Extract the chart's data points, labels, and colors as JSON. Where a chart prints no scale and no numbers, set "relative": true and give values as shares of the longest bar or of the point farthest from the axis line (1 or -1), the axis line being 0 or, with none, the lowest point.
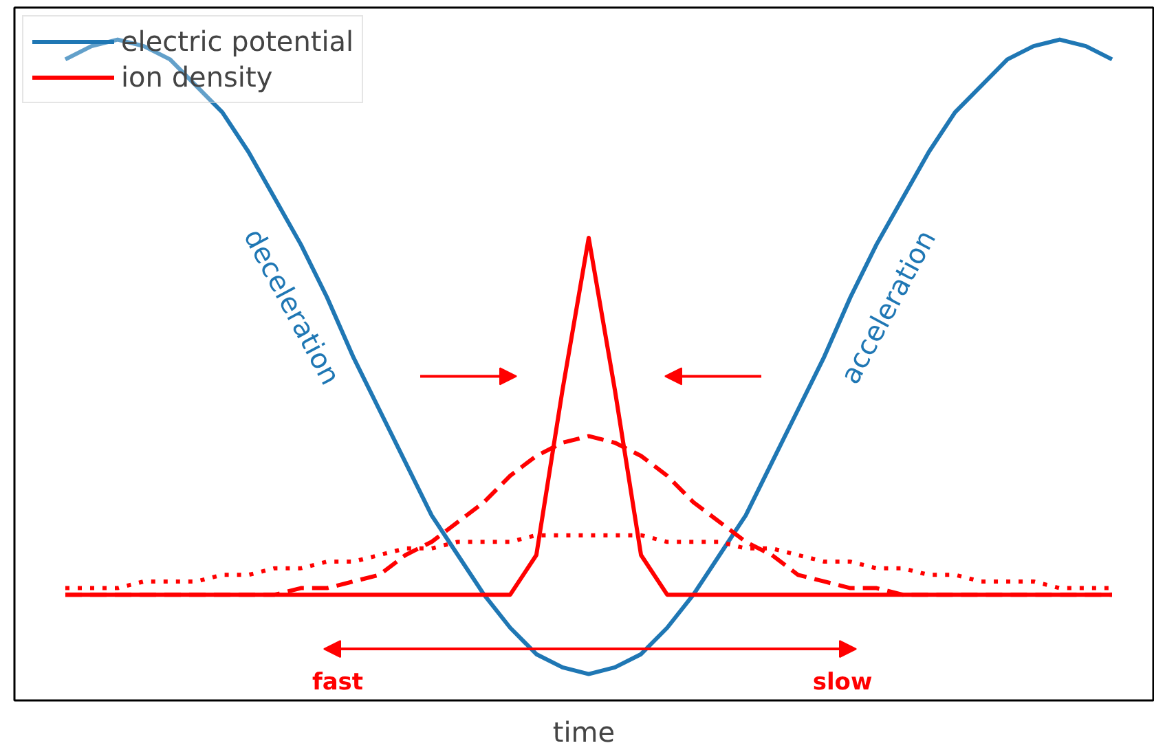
{
  "chart_data": {
    "type": "line",
    "relative": true,
    "xlabel": "time",
    "categories": [
      null,
      null,
      null,
      null,
      null,
      null,
      null,
      null,
      null,
      null,
      null,
      null,
      null,
      null,
      null,
      null,
      null,
      null,
      null,
      null,
      null,
      null,
      null,
      null,
      null,
      null,
      null,
      null,
      null,
      null,
      null,
      null,
      null,
      null,
      null,
      null,
      null,
      null,
      null,
      null,
      null
    ],
    "series": [
      {
        "name": "electric potential",
        "color": "#1f77b4",
        "line_style": "solid",
        "values": [
          0.97,
          0.99,
          1.0,
          0.99,
          0.97,
          0.93,
          0.89,
          0.83,
          0.76,
          0.69,
          0.61,
          0.52,
          0.44,
          0.36,
          0.28,
          0.22,
          0.16,
          0.11,
          0.07,
          0.05,
          0.04,
          0.05,
          0.07,
          0.11,
          0.16,
          0.22,
          0.28,
          0.36,
          0.44,
          0.52,
          0.61,
          0.69,
          0.76,
          0.83,
          0.89,
          0.93,
          0.97,
          0.99,
          1.0,
          0.99,
          0.97
        ]
      },
      {
        "name": "ion density",
        "color": "#ff0000",
        "line_style": "solid",
        "values": [
          0.16,
          0.16,
          0.16,
          0.16,
          0.16,
          0.16,
          0.16,
          0.16,
          0.16,
          0.16,
          0.16,
          0.16,
          0.16,
          0.16,
          0.16,
          0.16,
          0.16,
          0.16,
          0.22,
          0.47,
          0.7,
          0.47,
          0.22,
          0.16,
          0.16,
          0.16,
          0.16,
          0.16,
          0.16,
          0.16,
          0.16,
          0.16,
          0.16,
          0.16,
          0.16,
          0.16,
          0.16,
          0.16,
          0.16,
          0.16,
          0.16
        ]
      },
      {
        "color": "#ff0000",
        "line_style": "dashed",
        "values": [
          0.16,
          0.16,
          0.16,
          0.16,
          0.16,
          0.16,
          0.16,
          0.16,
          0.16,
          0.17,
          0.17,
          0.18,
          0.19,
          0.22,
          0.24,
          0.27,
          0.3,
          0.34,
          0.37,
          0.39,
          0.4,
          0.39,
          0.37,
          0.34,
          0.3,
          0.27,
          0.24,
          0.22,
          0.19,
          0.18,
          0.17,
          0.17,
          0.16,
          0.16,
          0.16,
          0.16,
          0.16,
          0.16,
          0.16,
          0.16,
          0.16
        ]
      },
      {
        "color": "#ff0000",
        "line_style": "dotted",
        "values": [
          0.17,
          0.17,
          0.17,
          0.18,
          0.18,
          0.18,
          0.19,
          0.19,
          0.2,
          0.2,
          0.21,
          0.21,
          0.22,
          0.23,
          0.23,
          0.24,
          0.24,
          0.24,
          0.25,
          0.25,
          0.25,
          0.25,
          0.25,
          0.24,
          0.24,
          0.24,
          0.23,
          0.23,
          0.22,
          0.21,
          0.21,
          0.2,
          0.2,
          0.19,
          0.19,
          0.18,
          0.18,
          0.18,
          0.17,
          0.17,
          0.17
        ]
      }
    ],
    "annotations": [
      "deceleration",
      "acceleration",
      "fast",
      "slow"
    ],
    "legend": "top left",
    "grid": false
  }
}
